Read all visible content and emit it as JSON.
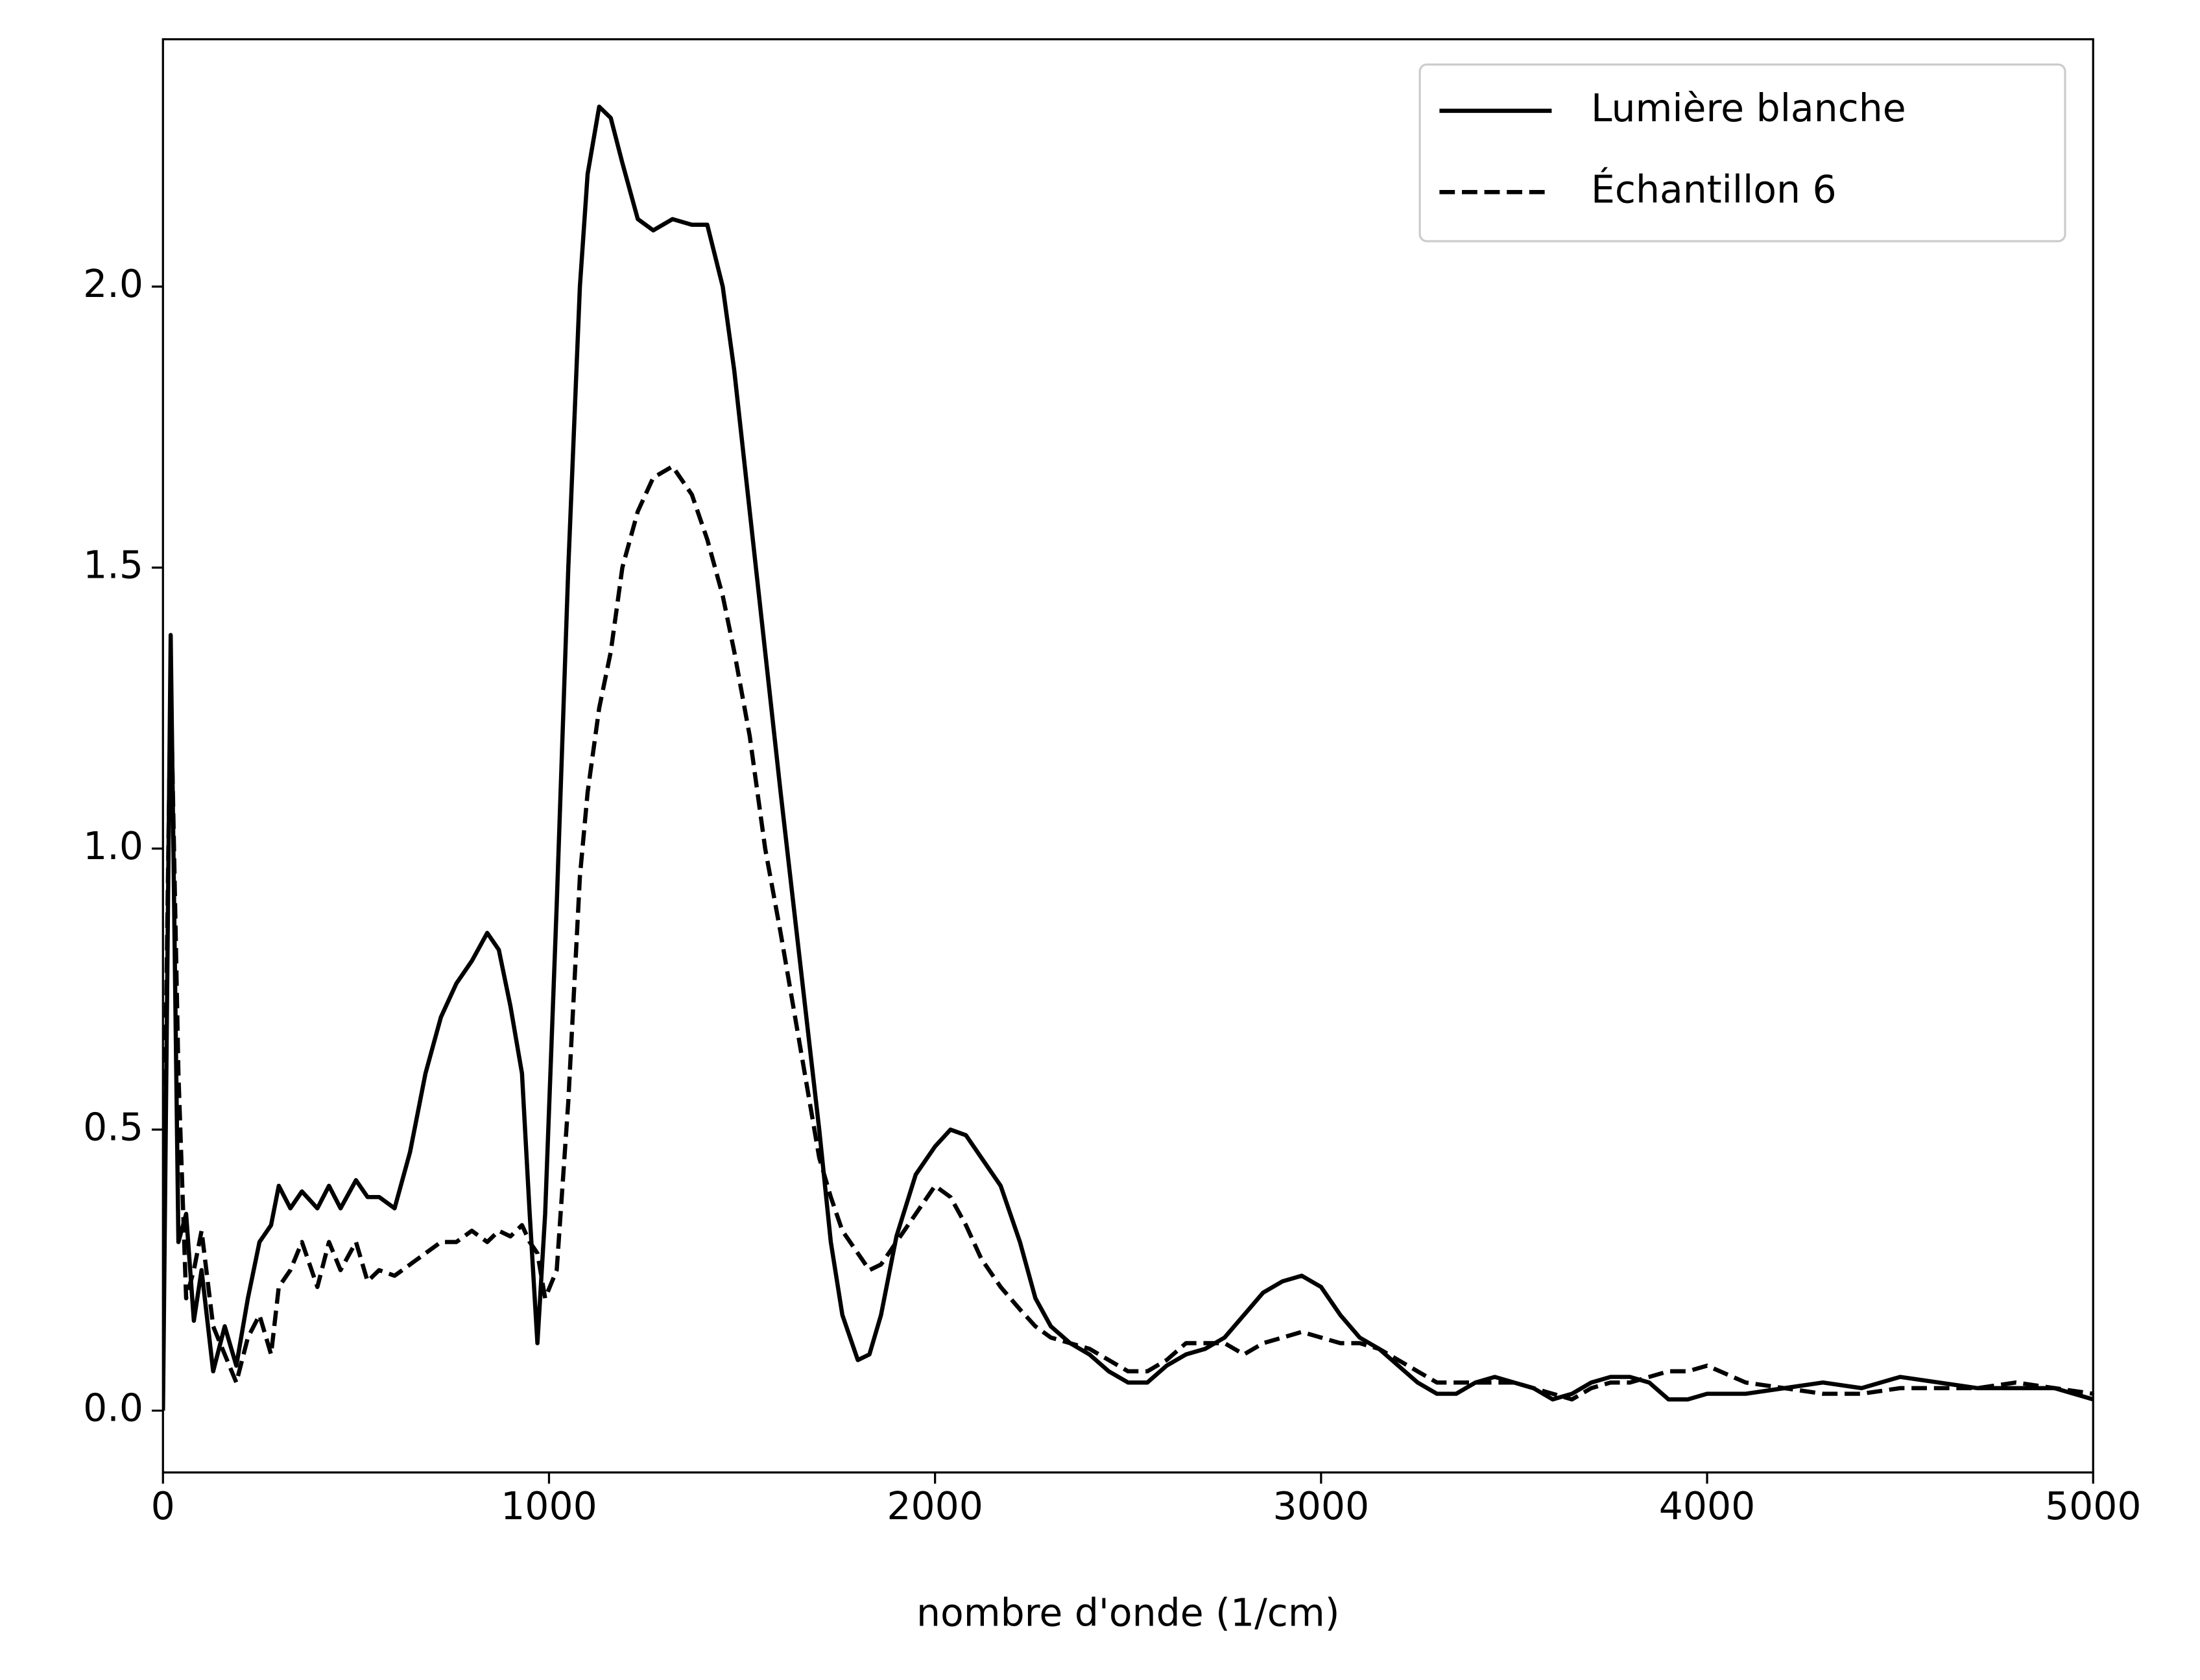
{
  "chart_data": {
    "type": "line",
    "xlabel": "nombre d'onde (1/cm)",
    "x": [
      0,
      20,
      40,
      60,
      80,
      100,
      130,
      160,
      190,
      220,
      250,
      280,
      300,
      330,
      360,
      400,
      430,
      460,
      500,
      530,
      560,
      600,
      640,
      680,
      720,
      760,
      800,
      840,
      870,
      900,
      930,
      950,
      970,
      990,
      1020,
      1050,
      1080,
      1100,
      1130,
      1160,
      1190,
      1230,
      1270,
      1320,
      1370,
      1410,
      1450,
      1480,
      1520,
      1560,
      1600,
      1650,
      1700,
      1730,
      1760,
      1800,
      1830,
      1860,
      1900,
      1950,
      2000,
      2040,
      2080,
      2120,
      2170,
      2220,
      2260,
      2300,
      2350,
      2400,
      2450,
      2500,
      2550,
      2600,
      2650,
      2700,
      2750,
      2800,
      2850,
      2900,
      2950,
      3000,
      3050,
      3100,
      3150,
      3200,
      3250,
      3300,
      3350,
      3400,
      3450,
      3500,
      3550,
      3600,
      3650,
      3700,
      3750,
      3800,
      3850,
      3900,
      3950,
      4000,
      4100,
      4200,
      4300,
      4400,
      4500,
      4600,
      4700,
      4800,
      4900,
      5000
    ],
    "series": [
      {
        "name": "Lumière blanche",
        "color": "#000000",
        "linestyle": "solid",
        "values": [
          0,
          1.38,
          0.3,
          0.35,
          0.16,
          0.25,
          0.07,
          0.15,
          0.08,
          0.2,
          0.3,
          0.33,
          0.4,
          0.36,
          0.39,
          0.36,
          0.4,
          0.36,
          0.41,
          0.38,
          0.38,
          0.36,
          0.46,
          0.6,
          0.7,
          0.76,
          0.8,
          0.85,
          0.82,
          0.72,
          0.6,
          0.35,
          0.12,
          0.35,
          0.9,
          1.5,
          2.0,
          2.2,
          2.32,
          2.3,
          2.22,
          2.12,
          2.1,
          2.12,
          2.11,
          2.11,
          2.0,
          1.85,
          1.6,
          1.35,
          1.1,
          0.8,
          0.5,
          0.3,
          0.17,
          0.09,
          0.1,
          0.17,
          0.31,
          0.42,
          0.47,
          0.5,
          0.49,
          0.45,
          0.4,
          0.3,
          0.2,
          0.15,
          0.12,
          0.1,
          0.07,
          0.05,
          0.05,
          0.08,
          0.1,
          0.11,
          0.13,
          0.17,
          0.21,
          0.23,
          0.24,
          0.22,
          0.17,
          0.13,
          0.11,
          0.08,
          0.05,
          0.03,
          0.03,
          0.05,
          0.06,
          0.05,
          0.04,
          0.02,
          0.03,
          0.05,
          0.06,
          0.06,
          0.05,
          0.02,
          0.02,
          0.03,
          0.03,
          0.04,
          0.05,
          0.04,
          0.06,
          0.05,
          0.04,
          0.04,
          0.04,
          0.02
        ]
      },
      {
        "name": "Échantillon 6",
        "color": "#000000",
        "linestyle": "dashed",
        "values": [
          0.3,
          1.3,
          0.6,
          0.2,
          0.25,
          0.32,
          0.15,
          0.1,
          0.05,
          0.13,
          0.17,
          0.1,
          0.22,
          0.25,
          0.3,
          0.22,
          0.3,
          0.25,
          0.3,
          0.23,
          0.25,
          0.24,
          0.26,
          0.28,
          0.3,
          0.3,
          0.32,
          0.3,
          0.32,
          0.31,
          0.33,
          0.3,
          0.28,
          0.2,
          0.25,
          0.55,
          0.95,
          1.1,
          1.25,
          1.35,
          1.5,
          1.6,
          1.66,
          1.68,
          1.63,
          1.55,
          1.45,
          1.35,
          1.2,
          1.0,
          0.85,
          0.65,
          0.45,
          0.38,
          0.32,
          0.28,
          0.25,
          0.26,
          0.3,
          0.35,
          0.4,
          0.38,
          0.33,
          0.27,
          0.22,
          0.18,
          0.15,
          0.13,
          0.12,
          0.11,
          0.09,
          0.07,
          0.07,
          0.09,
          0.12,
          0.12,
          0.12,
          0.1,
          0.12,
          0.13,
          0.14,
          0.13,
          0.12,
          0.12,
          0.11,
          0.09,
          0.07,
          0.05,
          0.05,
          0.05,
          0.05,
          0.05,
          0.04,
          0.03,
          0.02,
          0.04,
          0.05,
          0.05,
          0.06,
          0.07,
          0.07,
          0.08,
          0.05,
          0.04,
          0.03,
          0.03,
          0.04,
          0.04,
          0.04,
          0.05,
          0.04,
          0.03
        ]
      }
    ],
    "xlim": [
      0,
      5000
    ],
    "xticks": [
      0,
      1000,
      2000,
      3000,
      4000,
      5000
    ],
    "ylim": [
      -0.11,
      2.44
    ],
    "yticks": [
      {
        "value": 0,
        "label": "0.0"
      },
      0.5,
      {
        "value": 1,
        "label": "1.0"
      },
      1.5,
      {
        "value": 2,
        "label": "2.0"
      }
    ],
    "legend": "upper right"
  }
}
